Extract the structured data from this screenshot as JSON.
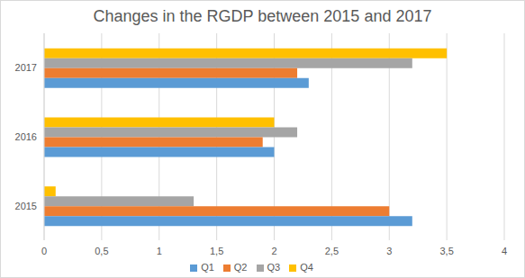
{
  "chart_data": {
    "type": "bar",
    "title": "Changes in the RGDP between 2015 and 2017",
    "orientation": "horizontal",
    "categories": [
      "2015",
      "2016",
      "2017"
    ],
    "series": [
      {
        "name": "Q1",
        "color": "#5b9bd5",
        "values": [
          3.2,
          2.0,
          2.3
        ]
      },
      {
        "name": "Q2",
        "color": "#ed7d31",
        "values": [
          3.0,
          1.9,
          2.2
        ]
      },
      {
        "name": "Q3",
        "color": "#a5a5a5",
        "values": [
          1.3,
          2.2,
          3.2
        ]
      },
      {
        "name": "Q4",
        "color": "#ffc000",
        "values": [
          0.1,
          2.0,
          3.5
        ]
      }
    ],
    "xlim": [
      0,
      4
    ],
    "xticks": [
      0,
      {
        "value": 0.5,
        "label": "0,5"
      },
      1,
      {
        "value": 1.5,
        "label": "1,5"
      },
      2,
      {
        "value": 2.5,
        "label": "2,5"
      },
      3,
      {
        "value": 3.5,
        "label": "3,5"
      },
      4
    ],
    "grid": true,
    "legend": "bottom"
  }
}
